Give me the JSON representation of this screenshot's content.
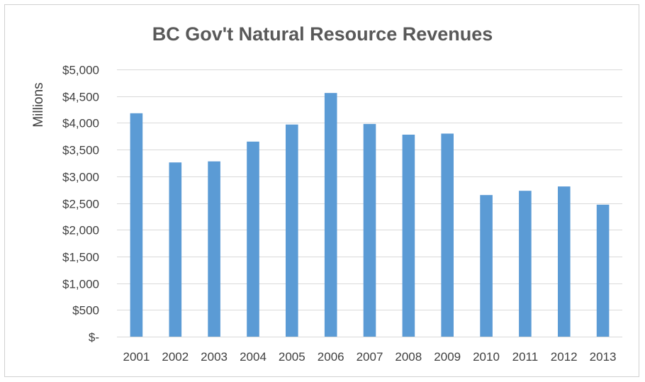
{
  "chart_data": {
    "type": "bar",
    "title": "BC Gov't Natural Resource Revenues",
    "xlabel": "",
    "ylabel": "Millions",
    "categories": [
      "2001",
      "2002",
      "2003",
      "2004",
      "2005",
      "2006",
      "2007",
      "2008",
      "2009",
      "2010",
      "2011",
      "2012",
      "2013"
    ],
    "values": [
      4180,
      3260,
      3280,
      3650,
      3970,
      4560,
      3980,
      3780,
      3800,
      2650,
      2730,
      2810,
      2470
    ],
    "ylim": [
      0,
      5000
    ],
    "yticks": [
      0,
      500,
      1000,
      1500,
      2000,
      2500,
      3000,
      3500,
      4000,
      4500,
      5000
    ],
    "ytick_labels": [
      "$-",
      "$500",
      "$1,000",
      "$1,500",
      "$2,000",
      "$2,500",
      "$3,000",
      "$3,500",
      "$4,000",
      "$4,500",
      "$5,000"
    ],
    "grid": true,
    "legend": "none",
    "bar_color": "#5b9bd5"
  }
}
